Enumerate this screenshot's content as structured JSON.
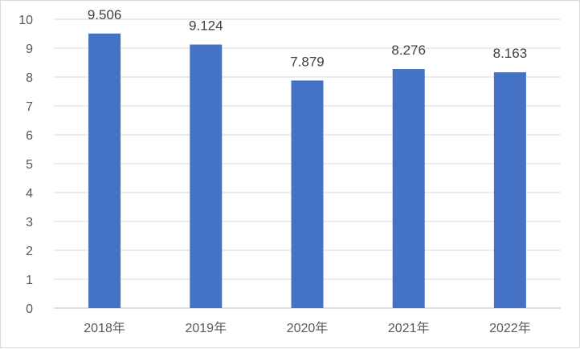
{
  "chart_data": {
    "type": "bar",
    "title": "",
    "xlabel": "",
    "ylabel": "",
    "categories": [
      "2018年",
      "2019年",
      "2020年",
      "2021年",
      "2022年"
    ],
    "values": [
      9.506,
      9.124,
      7.879,
      8.276,
      8.163
    ],
    "data_labels": [
      "9.506",
      "9.124",
      "7.879",
      "8.276",
      "8.163"
    ],
    "ylim": [
      0,
      10
    ],
    "yticks": [
      "0",
      "1",
      "2",
      "3",
      "4",
      "5",
      "6",
      "7",
      "8",
      "9",
      "10"
    ],
    "grid": true,
    "legend": "none",
    "colors": {
      "bar": "#4472c4",
      "grid": "#d9d9d9",
      "axis": "#bfbfbf"
    }
  }
}
